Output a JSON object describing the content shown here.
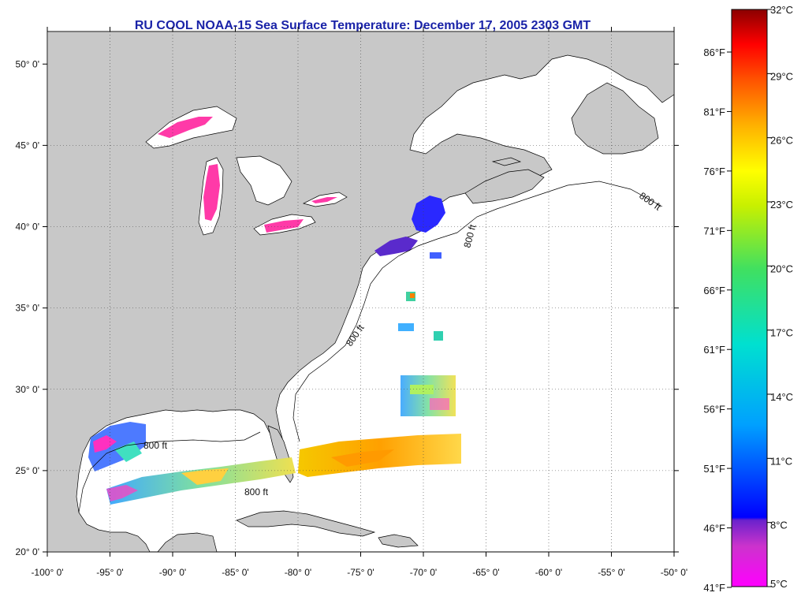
{
  "title": "RU COOL  NOAA-15  Sea Surface Temperature:  December 17, 2005 2303 GMT",
  "map": {
    "lon_range": [
      -100,
      -50
    ],
    "lat_range": [
      20,
      52
    ],
    "lon_ticks": [
      {
        "value": -100,
        "label": "-100° 0'"
      },
      {
        "value": -95,
        "label": "-95° 0'"
      },
      {
        "value": -90,
        "label": "-90° 0'"
      },
      {
        "value": -85,
        "label": "-85° 0'"
      },
      {
        "value": -80,
        "label": "-80° 0'"
      },
      {
        "value": -75,
        "label": "-75° 0'"
      },
      {
        "value": -70,
        "label": "-70° 0'"
      },
      {
        "value": -65,
        "label": "-65° 0'"
      },
      {
        "value": -60,
        "label": "-60° 0'"
      },
      {
        "value": -55,
        "label": "-55° 0'"
      },
      {
        "value": -50,
        "label": "-50° 0'"
      }
    ],
    "lat_ticks": [
      {
        "value": 50,
        "label": "50° 0'"
      },
      {
        "value": 45,
        "label": "45° 0'"
      },
      {
        "value": 40,
        "label": "40° 0'"
      },
      {
        "value": 35,
        "label": "35° 0'"
      },
      {
        "value": 30,
        "label": "30° 0'"
      },
      {
        "value": 25,
        "label": "25° 0'"
      },
      {
        "value": 20,
        "label": "20° 0'"
      }
    ],
    "isobath_label": "800 ft",
    "colors": {
      "land": "#c8c8c8",
      "ocean": "#ffffff",
      "grid": "#555555",
      "title": "#1a23a8"
    }
  },
  "colorbar": {
    "min_c": 5,
    "max_c": 32,
    "celsius_ticks": [
      "32°C",
      "29°C",
      "26°C",
      "23°C",
      "20°C",
      "17°C",
      "14°C",
      "11°C",
      "8°C",
      "5°C"
    ],
    "fahrenheit_ticks": [
      "86°F",
      "81°F",
      "76°F",
      "71°F",
      "66°F",
      "61°F",
      "56°F",
      "51°F",
      "46°F",
      "41°F"
    ]
  }
}
